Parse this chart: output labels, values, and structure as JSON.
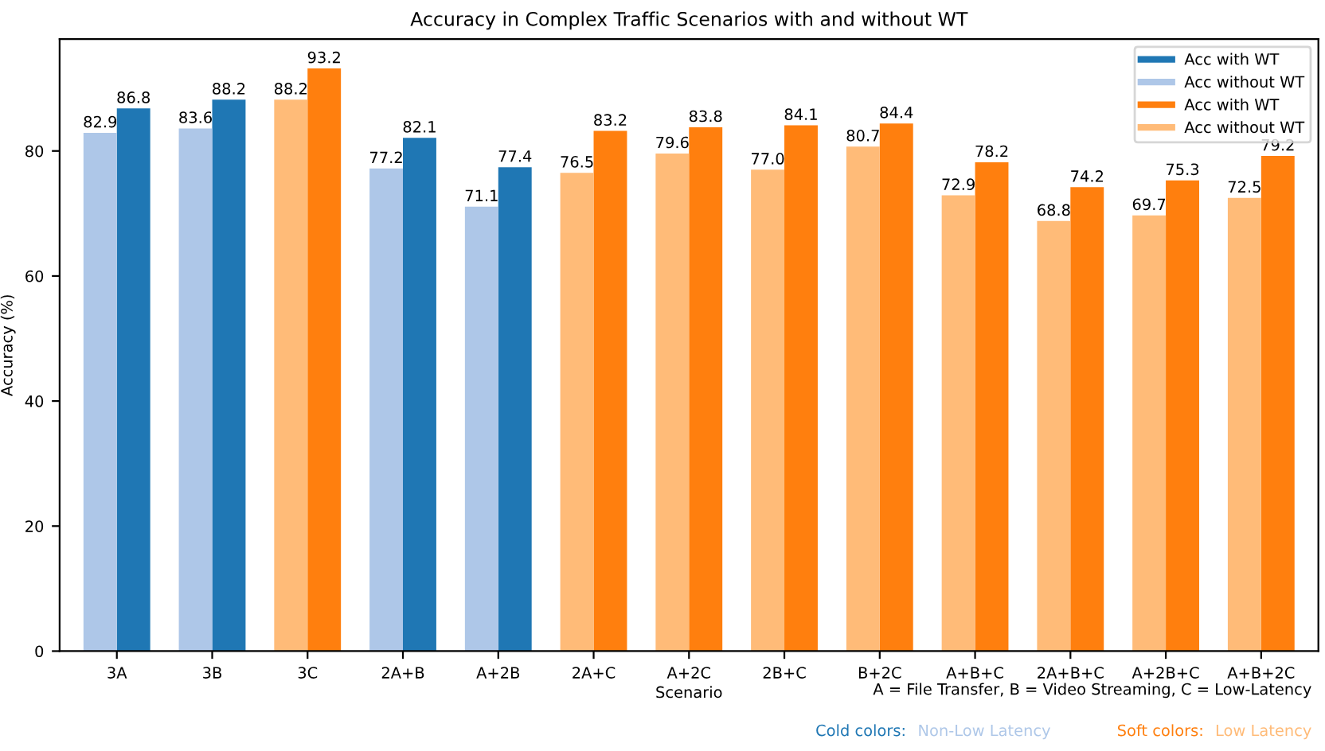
{
  "chart_data": {
    "type": "bar",
    "title": "Accuracy in Complex Traffic Scenarios with and without WT",
    "xlabel": "Scenario",
    "ylabel": "Accuracy (%)",
    "categories": [
      "3A",
      "3B",
      "3C",
      "2A+B",
      "A+2B",
      "2A+C",
      "A+2C",
      "2B+C",
      "B+2C",
      "A+B+C",
      "2A+B+C",
      "A+2B+C",
      "A+B+2C"
    ],
    "series": [
      {
        "name": "Acc with WT",
        "color": "#1f77b4",
        "values": [
          86.8,
          88.2,
          null,
          82.1,
          77.4,
          null,
          null,
          null,
          null,
          null,
          null,
          null,
          null
        ],
        "value_labels": [
          "86.8",
          "88.2",
          null,
          "82.1",
          "77.4",
          null,
          null,
          null,
          null,
          null,
          null,
          null,
          null
        ]
      },
      {
        "name": "Acc without WT",
        "color": "#aec7e8",
        "values": [
          82.9,
          83.6,
          null,
          77.2,
          71.1,
          null,
          null,
          null,
          null,
          null,
          null,
          null,
          null
        ],
        "value_labels": [
          "82.9",
          "83.6",
          null,
          "77.2",
          "71.1",
          null,
          null,
          null,
          null,
          null,
          null,
          null,
          null
        ]
      },
      {
        "name": "Acc with WT",
        "color": "#ff7f0e",
        "values": [
          null,
          null,
          93.2,
          null,
          null,
          83.2,
          83.8,
          84.1,
          84.4,
          78.2,
          74.2,
          75.3,
          79.2
        ],
        "value_labels": [
          null,
          null,
          "93.2",
          null,
          null,
          "83.2",
          "83.8",
          "84.1",
          "84.4",
          "78.2",
          "74.2",
          "75.3",
          "79.2"
        ]
      },
      {
        "name": "Acc without WT",
        "color": "#ffbb78",
        "values": [
          null,
          null,
          88.2,
          null,
          null,
          76.5,
          79.6,
          77.0,
          80.7,
          72.9,
          68.8,
          69.7,
          72.5
        ],
        "value_labels": [
          null,
          null,
          "88.2",
          null,
          null,
          "76.5",
          "79.6",
          "77.0",
          "80.7",
          "72.9",
          "68.8",
          "69.7",
          "72.5"
        ]
      }
    ],
    "ylim": [
      0,
      97.9
    ],
    "yticks": [
      0,
      20,
      40,
      60,
      80
    ],
    "grid": false,
    "legend": "top right",
    "annotations": [
      "A = File Transfer, B = Video Streaming, C = Low-Latency",
      "Cold colors:",
      "Non-Low Latency",
      "Soft colors:",
      "Low Latency"
    ]
  }
}
